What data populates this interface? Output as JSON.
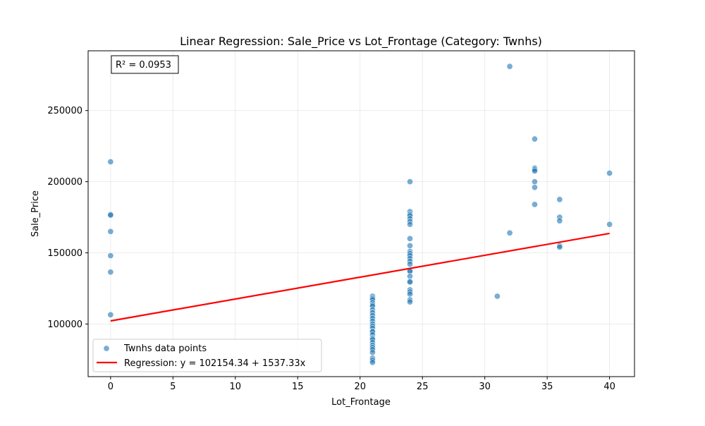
{
  "chart_data": {
    "type": "scatter",
    "title": "Linear Regression: Sale_Price vs Lot_Frontage (Category: Twnhs)",
    "xlabel": "Lot_Frontage",
    "ylabel": "Sale_Price",
    "xlim": [
      -1.8,
      42
    ],
    "ylim": [
      63000,
      292000
    ],
    "xticks": [
      0,
      5,
      10,
      15,
      20,
      25,
      30,
      35,
      40
    ],
    "yticks": [
      100000,
      150000,
      200000,
      250000
    ],
    "grid": true,
    "legend_position": "lower-left",
    "annotation": "R² = 0.0953",
    "colors": {
      "points": "#1f77b4",
      "regression": "#ff0000"
    },
    "series": [
      {
        "name": "Twnhs data points",
        "type": "scatter",
        "points": [
          [
            0,
            214000
          ],
          [
            0,
            177000
          ],
          [
            0,
            176500
          ],
          [
            0,
            165000
          ],
          [
            0,
            148000
          ],
          [
            0,
            136500
          ],
          [
            0,
            106500
          ],
          [
            21,
            119500
          ],
          [
            21,
            118000
          ],
          [
            21,
            117000
          ],
          [
            21,
            115000
          ],
          [
            21,
            113500
          ],
          [
            21,
            112500
          ],
          [
            21,
            110000
          ],
          [
            21,
            108000
          ],
          [
            21,
            106000
          ],
          [
            21,
            104000
          ],
          [
            21,
            102000
          ],
          [
            21,
            100000
          ],
          [
            21,
            98500
          ],
          [
            21,
            97000
          ],
          [
            21,
            95000
          ],
          [
            21,
            94500
          ],
          [
            21,
            92500
          ],
          [
            21,
            90000
          ],
          [
            21,
            89000
          ],
          [
            21,
            87000
          ],
          [
            21,
            85000
          ],
          [
            21,
            83500
          ],
          [
            21,
            82000
          ],
          [
            21,
            80000
          ],
          [
            21,
            76000
          ],
          [
            21,
            74500
          ],
          [
            21,
            73000
          ],
          [
            24,
            200000
          ],
          [
            24,
            179000
          ],
          [
            24,
            177000
          ],
          [
            24,
            176000
          ],
          [
            24,
            174000
          ],
          [
            24,
            172000
          ],
          [
            24,
            170000
          ],
          [
            24,
            160000
          ],
          [
            24,
            155000
          ],
          [
            24,
            151000
          ],
          [
            24,
            149500
          ],
          [
            24,
            148000
          ],
          [
            24,
            146000
          ],
          [
            24,
            144000
          ],
          [
            24,
            142000
          ],
          [
            24,
            137500
          ],
          [
            24,
            137000
          ],
          [
            24,
            133500
          ],
          [
            24,
            130000
          ],
          [
            24,
            129500
          ],
          [
            24,
            124000
          ],
          [
            24,
            122500
          ],
          [
            24,
            121000
          ],
          [
            24,
            117000
          ],
          [
            24,
            115500
          ],
          [
            31,
            119500
          ],
          [
            32,
            281000
          ],
          [
            32,
            164000
          ],
          [
            34,
            230000
          ],
          [
            34,
            209500
          ],
          [
            34,
            208500
          ],
          [
            34,
            207500
          ],
          [
            34,
            200000
          ],
          [
            34,
            196000
          ],
          [
            34,
            184000
          ],
          [
            36,
            187500
          ],
          [
            36,
            175000
          ],
          [
            36,
            172500
          ],
          [
            36,
            155000
          ],
          [
            36,
            154000
          ],
          [
            40,
            206000
          ],
          [
            40,
            170000
          ]
        ]
      },
      {
        "name": "Regression: y = 102154.34 + 1537.33x",
        "type": "line",
        "intercept": 102154.34,
        "slope": 1537.33,
        "x_range": [
          0,
          40
        ]
      }
    ]
  }
}
